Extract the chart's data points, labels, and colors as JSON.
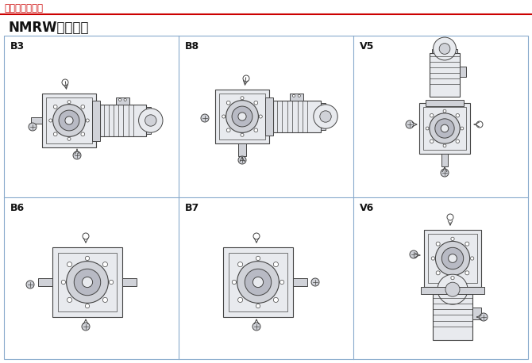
{
  "title_text": "结构及安装方式",
  "title_text_color": "#cc0000",
  "title_line_color": "#cc0000",
  "section_title": "NMRW安装方位",
  "bg_color": "#ffffff",
  "grid_line_color": "#88aacc",
  "labels": [
    "B3",
    "B8",
    "V5",
    "B6",
    "B7",
    "V6"
  ],
  "label_color": "#111111",
  "line_color": "#444444",
  "fill_light": "#e8eaee",
  "fill_mid": "#d0d2d8",
  "fill_dark": "#b8bac4",
  "fig_width": 6.7,
  "fig_height": 4.58
}
